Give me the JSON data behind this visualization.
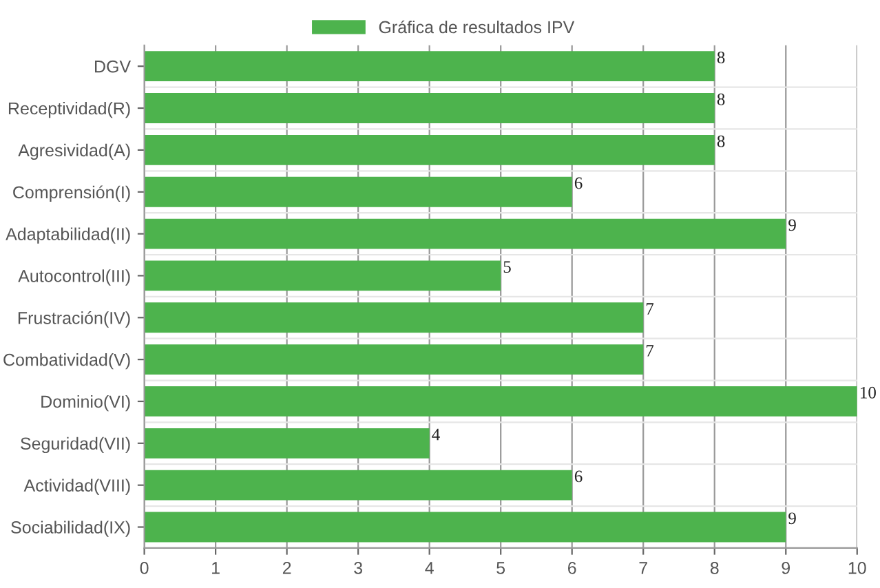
{
  "chart_data": {
    "type": "bar",
    "orientation": "horizontal",
    "categories": [
      "DGV",
      "Receptividad(R)",
      "Agresividad(A)",
      "Comprensión(I)",
      "Adaptabilidad(II)",
      "Autocontrol(III)",
      "Frustración(IV)",
      "Combatividad(V)",
      "Dominio(VI)",
      "Seguridad(VII)",
      "Actividad(VIII)",
      "Sociabilidad(IX)"
    ],
    "series": [
      {
        "name": "Gráfica de resultados IPV",
        "color": "#4db34d",
        "values": [
          8,
          8,
          8,
          6,
          9,
          5,
          7,
          7,
          10,
          4,
          6,
          9
        ]
      }
    ],
    "xlim": [
      0,
      10
    ],
    "xticks": [
      0,
      1,
      2,
      3,
      4,
      5,
      6,
      7,
      8,
      9,
      10
    ],
    "grid": true,
    "legend": "top",
    "data_labels": true
  }
}
